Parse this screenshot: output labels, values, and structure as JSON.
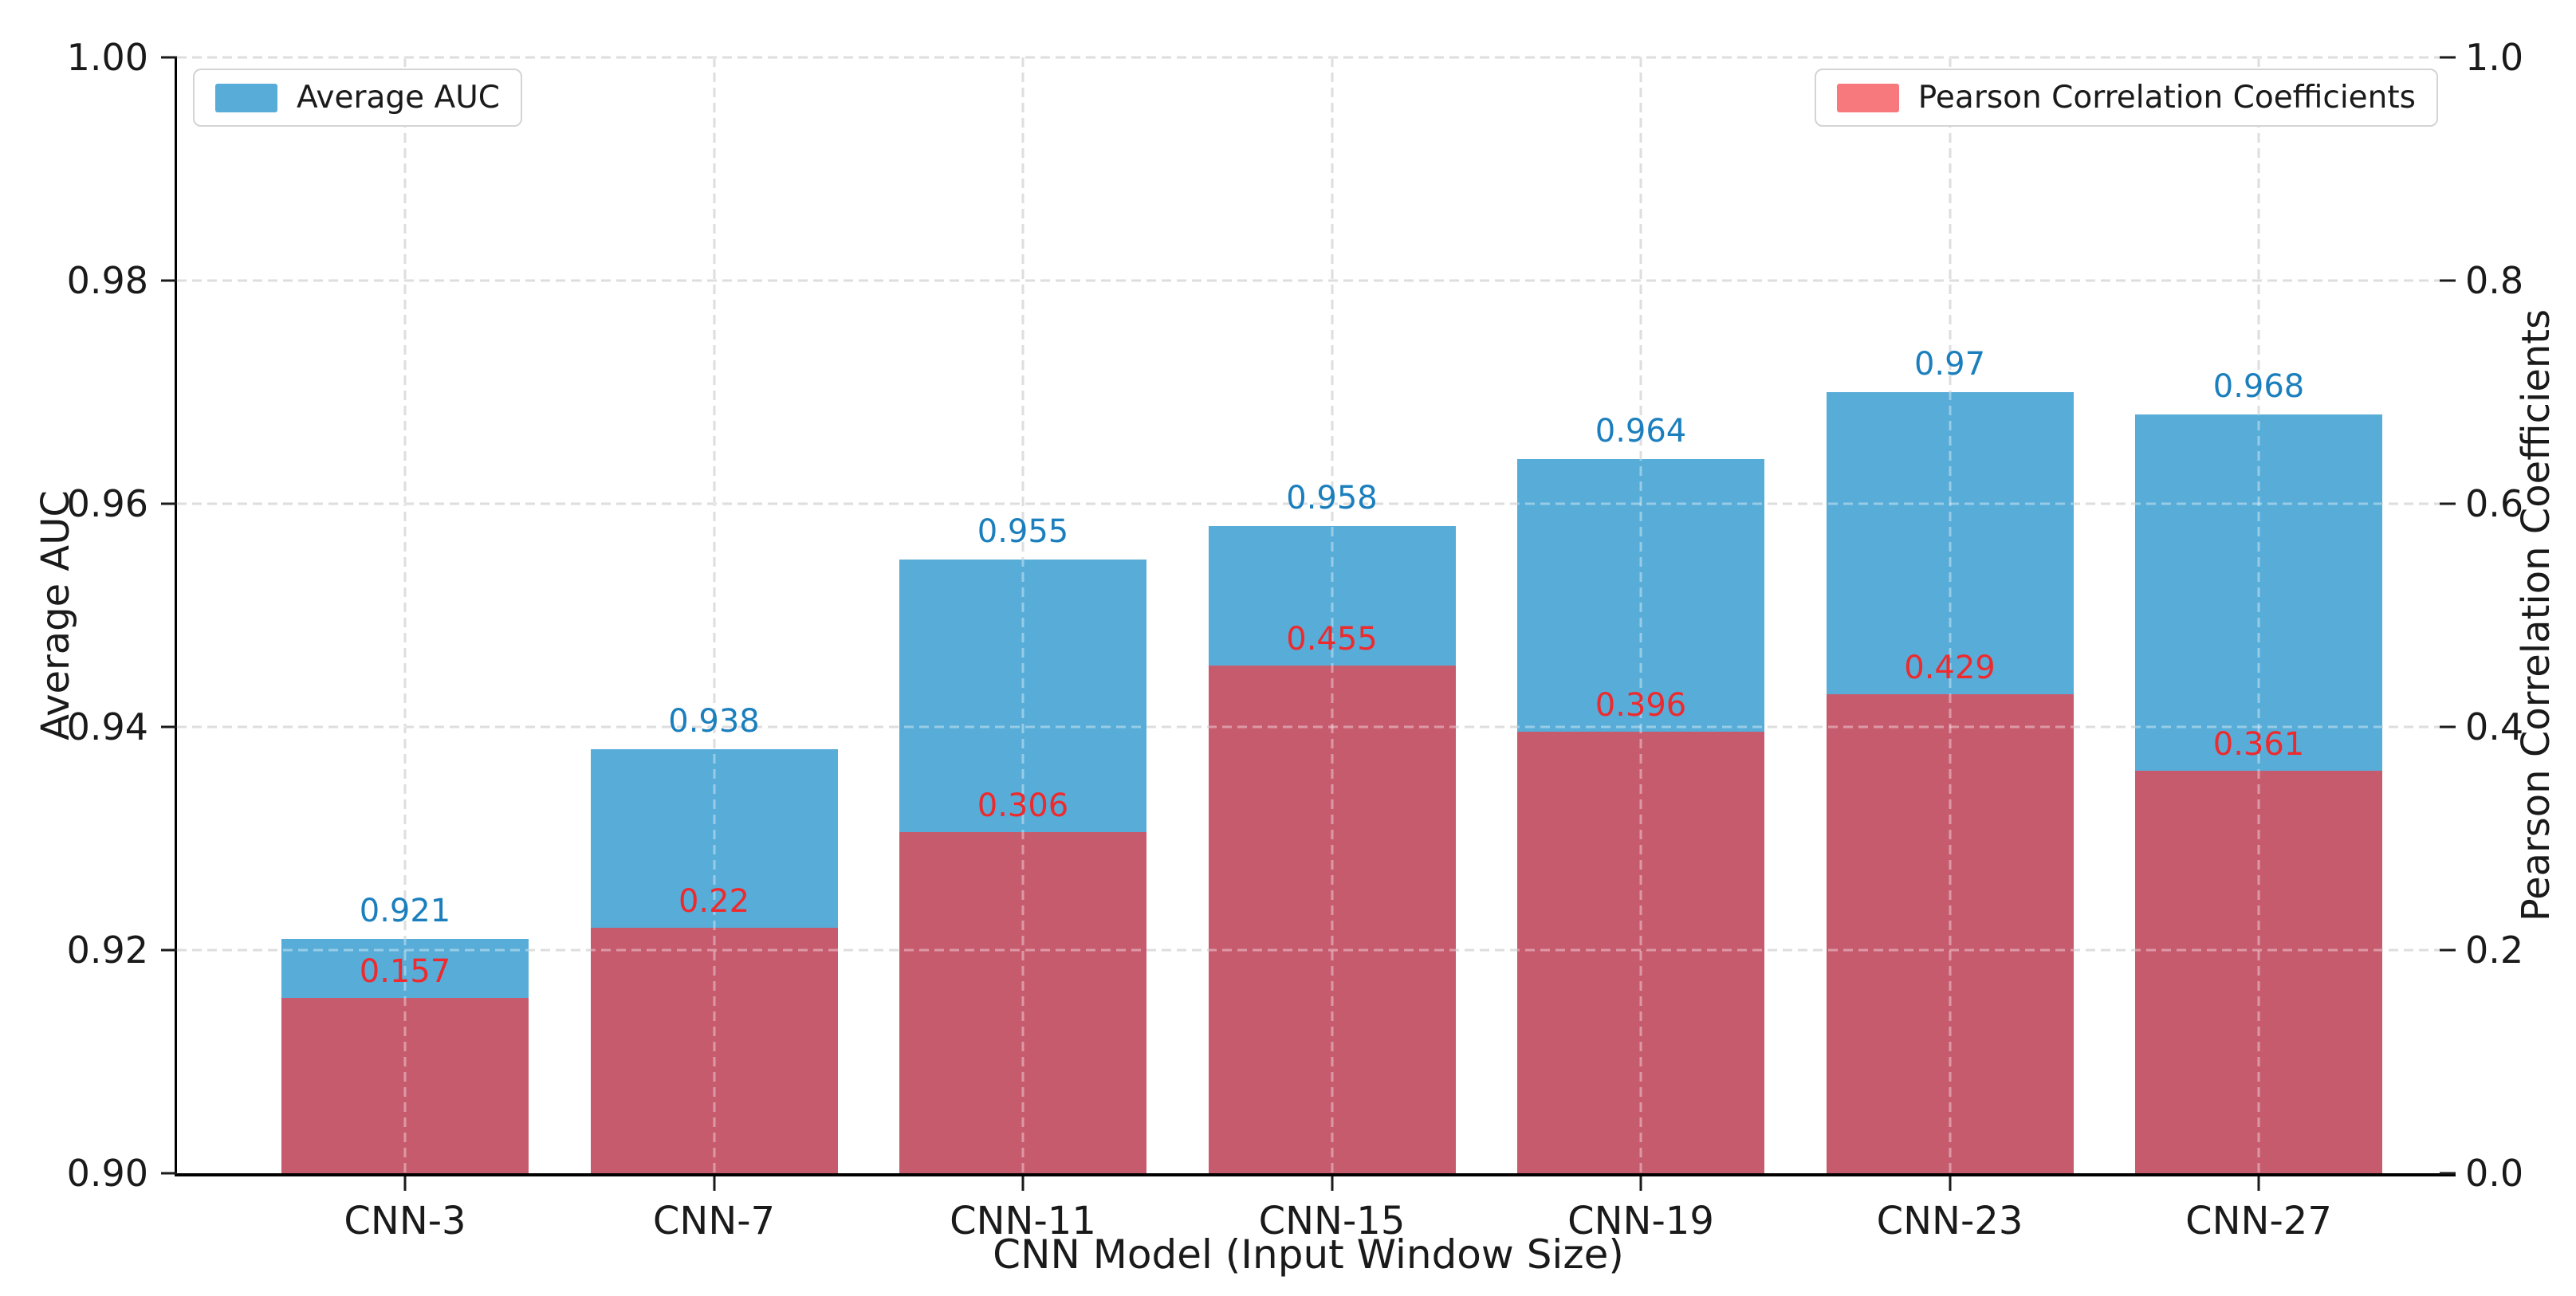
{
  "chart_data": {
    "type": "bar",
    "title": "",
    "categories": [
      "CNN-3",
      "CNN-7",
      "CNN-11",
      "CNN-15",
      "CNN-19",
      "CNN-23",
      "CNN-27"
    ],
    "series": [
      {
        "name": "Average AUC",
        "axis": "left",
        "bar_color": "#57ACD8",
        "label_color": "#1B7FBD",
        "values": [
          0.921,
          0.938,
          0.955,
          0.958,
          0.964,
          0.97,
          0.968
        ],
        "labels": [
          "0.921",
          "0.938",
          "0.955",
          "0.958",
          "0.964",
          "0.97",
          "0.968"
        ]
      },
      {
        "name": "Pearson Correlation Coefficients",
        "axis": "right",
        "bar_color": "#C75B6E",
        "legend_swatch_color": "#F8797D",
        "label_color": "#EE2A2D",
        "values": [
          0.157,
          0.22,
          0.306,
          0.455,
          0.396,
          0.429,
          0.361
        ],
        "labels": [
          "0.157",
          "0.22",
          "0.306",
          "0.455",
          "0.396",
          "0.429",
          "0.361"
        ]
      }
    ],
    "xlabel": "CNN Model (Input Window Size)",
    "left_axis": {
      "label": "Average AUC",
      "min": 0.9,
      "max": 1.0,
      "tick_labels": [
        "1.00",
        "0.98",
        "0.96",
        "0.94",
        "0.92",
        "0.90"
      ]
    },
    "right_axis": {
      "label": "Pearson Correlation Coefficients",
      "min": 0.0,
      "max": 1.0,
      "tick_labels": [
        "1.0",
        "0.8",
        "0.6",
        "0.4",
        "0.2",
        "0.0"
      ]
    },
    "grid": {
      "show": true,
      "style": "dashed",
      "color": "#c9c9c9"
    },
    "legend": {
      "left": {
        "label": "Average AUC",
        "swatch_color": "#57ACD8"
      },
      "right": {
        "label": "Pearson Correlation Coefficients",
        "swatch_color": "#F8797D"
      }
    }
  }
}
